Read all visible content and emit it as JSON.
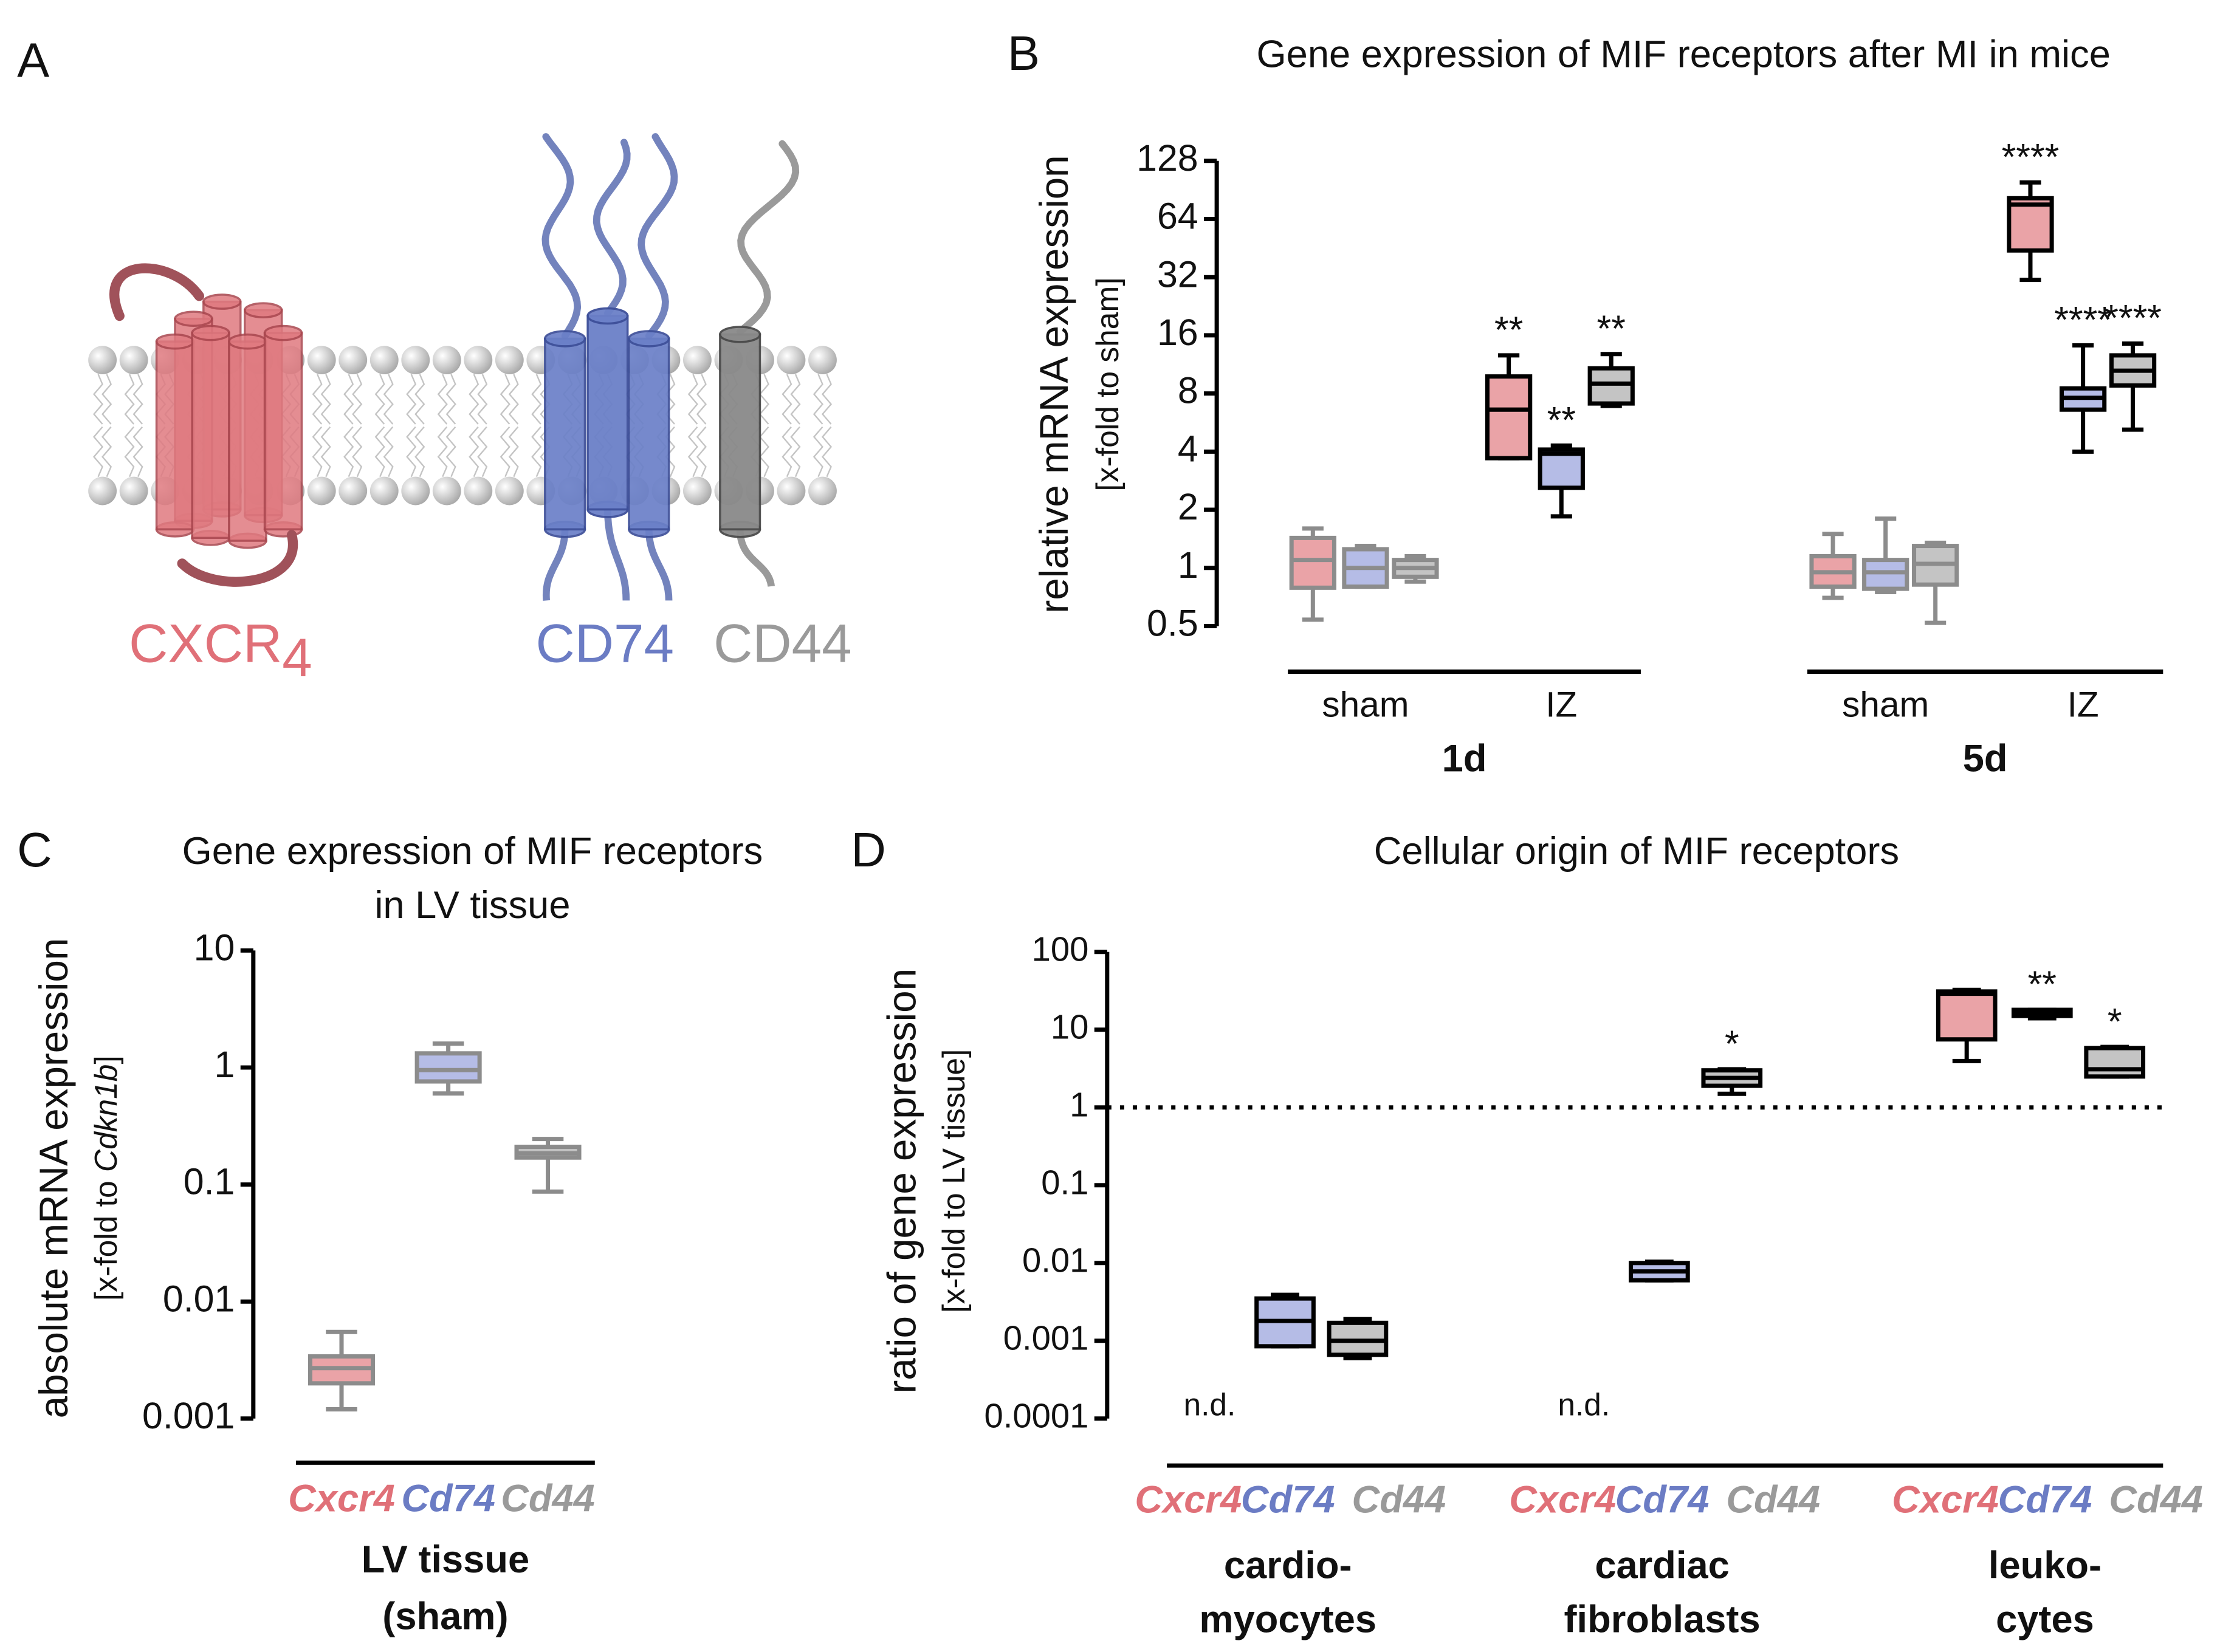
{
  "diagram": {
    "panel": "A",
    "labels": [
      {
        "parts": [
          "CXCR",
          "4"
        ],
        "color": "#e07078"
      },
      {
        "parts": [
          "CD74"
        ],
        "color": "#6b7cc4"
      },
      {
        "parts": [
          "CD44"
        ],
        "color": "#9a9a9a"
      }
    ]
  },
  "chart_data": [
    {
      "type": "box",
      "panel": "B",
      "title": "Gene expression of MIF receptors after MI in mice",
      "y_label": "relative mRNA expression",
      "y_label_sub": "[x-fold to sham]",
      "yscale": "log",
      "ylim": [
        0.5,
        128
      ],
      "yticks": [
        0.5,
        1,
        2,
        4,
        8,
        16,
        32,
        64,
        128
      ],
      "groups": [
        {
          "label": "1d",
          "categories": [
            "sham",
            "IZ"
          ]
        },
        {
          "label": "5d",
          "categories": [
            "sham",
            "IZ"
          ]
        }
      ],
      "box_edge": [
        "#8c8c8c",
        "#000000",
        "#8c8c8c",
        "#000000"
      ],
      "series": [
        {
          "color": "#eaa3a7",
          "min": [
            0.54,
            3.7,
            0.7,
            31
          ],
          "q1": [
            0.79,
            3.7,
            0.8,
            44
          ],
          "median": [
            1.1,
            6.6,
            0.95,
            76
          ],
          "q3": [
            1.43,
            9.8,
            1.15,
            82
          ],
          "max": [
            1.6,
            12.6,
            1.5,
            99
          ],
          "labels": [
            null,
            "**",
            null,
            "****"
          ]
        },
        {
          "color": "#b5bce6",
          "min": [
            0.8,
            1.85,
            0.75,
            4
          ],
          "q1": [
            0.8,
            2.6,
            0.78,
            6.6
          ],
          "median": [
            1.0,
            3.9,
            0.95,
            7.6
          ],
          "q3": [
            1.25,
            4.1,
            1.1,
            8.5
          ],
          "max": [
            1.3,
            4.3,
            1.8,
            14.2
          ],
          "labels": [
            null,
            "**",
            null,
            "****"
          ]
        },
        {
          "color": "#c4c4c4",
          "min": [
            0.85,
            6.9,
            0.52,
            5.2
          ],
          "q1": [
            0.9,
            7.1,
            0.82,
            8.8
          ],
          "median": [
            1.0,
            9.0,
            1.05,
            10.5
          ],
          "q3": [
            1.1,
            10.8,
            1.3,
            12.6
          ],
          "max": [
            1.15,
            12.8,
            1.35,
            14.5
          ],
          "labels": [
            null,
            "**",
            null,
            "****"
          ]
        }
      ]
    },
    {
      "type": "box",
      "panel": "C",
      "title": [
        "Gene expression of MIF receptors",
        "in LV tissue"
      ],
      "y_label": "absolute mRNA expression",
      "y_label_sub": [
        "[x-fold to ",
        "Cdkn1b",
        "]"
      ],
      "yscale": "log",
      "ylim": [
        0.001,
        10
      ],
      "yticks": [
        0.001,
        0.01,
        0.1,
        1,
        10
      ],
      "categories": [
        "Cxcr4",
        "Cd74",
        "Cd44"
      ],
      "colors": [
        "#eaa3a7",
        "#b5bce6",
        "#c4c4c4"
      ],
      "label_colors": [
        "#e07078",
        "#6b7cc4",
        "#9a9a9a"
      ],
      "box_edge": "#8c8c8c",
      "min": [
        0.0012,
        0.6,
        0.087
      ],
      "q1": [
        0.002,
        0.76,
        0.17
      ],
      "median": [
        0.0027,
        0.95,
        0.185
      ],
      "q3": [
        0.0034,
        1.32,
        0.21
      ],
      "max": [
        0.0055,
        1.6,
        0.245
      ],
      "group_label": [
        "LV tissue",
        "(sham)"
      ]
    },
    {
      "type": "box",
      "panel": "D",
      "title": "Cellular origin of MIF receptors",
      "y_label": "ratio of gene expression",
      "y_label_sub": "[x-fold to LV tissue]",
      "yscale": "log",
      "ylim": [
        0.0001,
        100
      ],
      "yticks": [
        0.0001,
        0.001,
        0.01,
        0.1,
        1,
        10,
        100
      ],
      "reference_line": 1,
      "groups": [
        {
          "label": [
            "cardio-",
            "myocytes"
          ]
        },
        {
          "label": [
            "cardiac",
            "fibroblasts"
          ]
        },
        {
          "label": [
            "leuko-",
            "cytes"
          ]
        }
      ],
      "box_edge": "#000000",
      "series": [
        {
          "name": "Cxcr4",
          "color": "#eaa3a7",
          "label_color": "#e07078",
          "min": [
            null,
            null,
            3.95
          ],
          "q1": [
            null,
            null,
            7.5
          ],
          "median": [
            null,
            null,
            29
          ],
          "q3": [
            null,
            null,
            31
          ],
          "max": [
            null,
            null,
            32.5
          ],
          "labels": [
            "n.d.",
            "n.d.",
            null
          ]
        },
        {
          "name": "Cd74",
          "color": "#b5bce6",
          "label_color": "#6b7cc4",
          "min": [
            0.00085,
            0.006,
            14
          ],
          "q1": [
            0.00085,
            0.006,
            15
          ],
          "median": [
            0.0018,
            0.0078,
            16
          ],
          "q3": [
            0.0035,
            0.01,
            18
          ],
          "max": [
            0.0039,
            0.0104,
            18
          ],
          "labels": [
            null,
            null,
            "**"
          ]
        },
        {
          "name": "Cd44",
          "color": "#c4c4c4",
          "label_color": "#9a9a9a",
          "min": [
            0.0006,
            1.5,
            2.5
          ],
          "q1": [
            0.00066,
            1.9,
            2.5
          ],
          "median": [
            0.001,
            2.4,
            3.1
          ],
          "q3": [
            0.0017,
            3.0,
            5.8
          ],
          "max": [
            0.0019,
            3.1,
            6
          ],
          "labels": [
            null,
            "*",
            "*"
          ]
        }
      ]
    }
  ]
}
